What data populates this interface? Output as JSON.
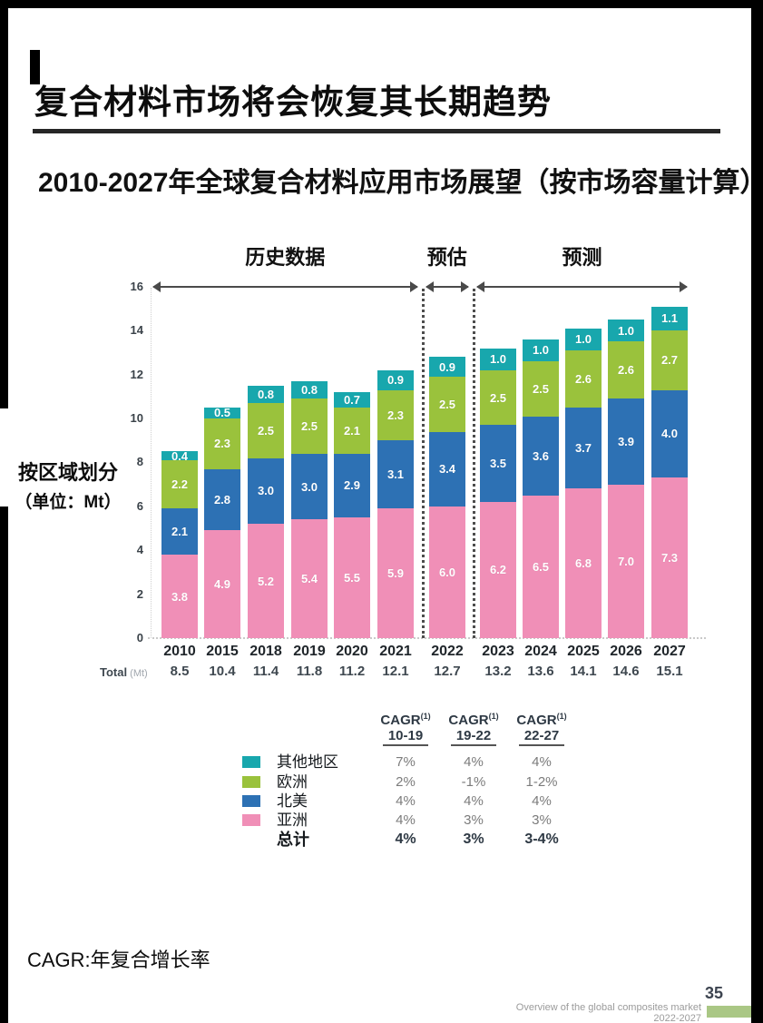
{
  "header": {
    "title": "复合材料市场将会恢复其长期趋势",
    "subtitle": "2010-2027年全球复合材料应用市场展望（按市场容量计算）"
  },
  "side_label": {
    "line1": "按区域划分",
    "line2": "（单位：Mt）"
  },
  "chart_data": {
    "type": "bar",
    "stacked": true,
    "title": "2010-2027年全球复合材料应用市场展望（按市场容量计算）",
    "ylabel": "按区域划分（单位：Mt）",
    "unit": "Mt",
    "ylim": [
      0,
      16
    ],
    "ytick_step": 2,
    "grid": false,
    "legend_position": "bottom-left",
    "categories": [
      "2010",
      "2015",
      "2018",
      "2019",
      "2020",
      "2021",
      "2022",
      "2023",
      "2024",
      "2025",
      "2026",
      "2027"
    ],
    "series": [
      {
        "name": "亚洲",
        "color": "#f08fb7",
        "values": [
          3.8,
          4.9,
          5.2,
          5.4,
          5.5,
          5.9,
          6.0,
          6.2,
          6.5,
          6.8,
          7.0,
          7.3
        ]
      },
      {
        "name": "北美",
        "color": "#2d71b4",
        "values": [
          2.1,
          2.8,
          3.0,
          3.0,
          2.9,
          3.1,
          3.4,
          3.5,
          3.6,
          3.7,
          3.9,
          4.0
        ]
      },
      {
        "name": "欧洲",
        "color": "#9ac23c",
        "values": [
          2.2,
          2.3,
          2.5,
          2.5,
          2.1,
          2.3,
          2.5,
          2.5,
          2.5,
          2.6,
          2.6,
          2.7
        ]
      },
      {
        "name": "其他地区",
        "color": "#18a7ad",
        "values": [
          0.4,
          0.5,
          0.8,
          0.8,
          0.7,
          0.9,
          0.9,
          1.0,
          1.0,
          1.0,
          1.0,
          1.1
        ]
      }
    ],
    "totals_row": {
      "label": "Total",
      "unit": "(Mt)",
      "values": [
        "8.5",
        "10.4",
        "11.4",
        "11.8",
        "11.2",
        "12.1",
        "12.7",
        "13.2",
        "13.6",
        "14.1",
        "14.6",
        "15.1"
      ]
    },
    "phases": [
      {
        "label": "历史数据",
        "from_index": 0,
        "to_index": 5
      },
      {
        "label": "预估",
        "from_index": 6,
        "to_index": 6
      },
      {
        "label": "预测",
        "from_index": 7,
        "to_index": 11
      }
    ]
  },
  "cagr_table": {
    "columns": [
      {
        "name": "CAGR",
        "sup": "(1)",
        "period": "10-19"
      },
      {
        "name": "CAGR",
        "sup": "(1)",
        "period": "19-22"
      },
      {
        "name": "CAGR",
        "sup": "(1)",
        "period": "22-27"
      }
    ],
    "rows": [
      {
        "label": "其他地区",
        "color": "#18a7ad",
        "values": [
          "7%",
          "4%",
          "4%"
        ],
        "bold": false
      },
      {
        "label": "欧洲",
        "color": "#9ac23c",
        "values": [
          "2%",
          "-1%",
          "1-2%"
        ],
        "bold": false
      },
      {
        "label": "北美",
        "color": "#2d71b4",
        "values": [
          "4%",
          "4%",
          "4%"
        ],
        "bold": false
      },
      {
        "label": "亚洲",
        "color": "#f08fb7",
        "values": [
          "4%",
          "3%",
          "3%"
        ],
        "bold": false
      },
      {
        "label": "总计",
        "color": null,
        "values": [
          "4%",
          "3%",
          "3-4%"
        ],
        "bold": true
      }
    ]
  },
  "footnote": "CAGR:年复合增长率",
  "footer": {
    "text": "Overview of the global composites market 2022-2027",
    "page_number": "35"
  }
}
